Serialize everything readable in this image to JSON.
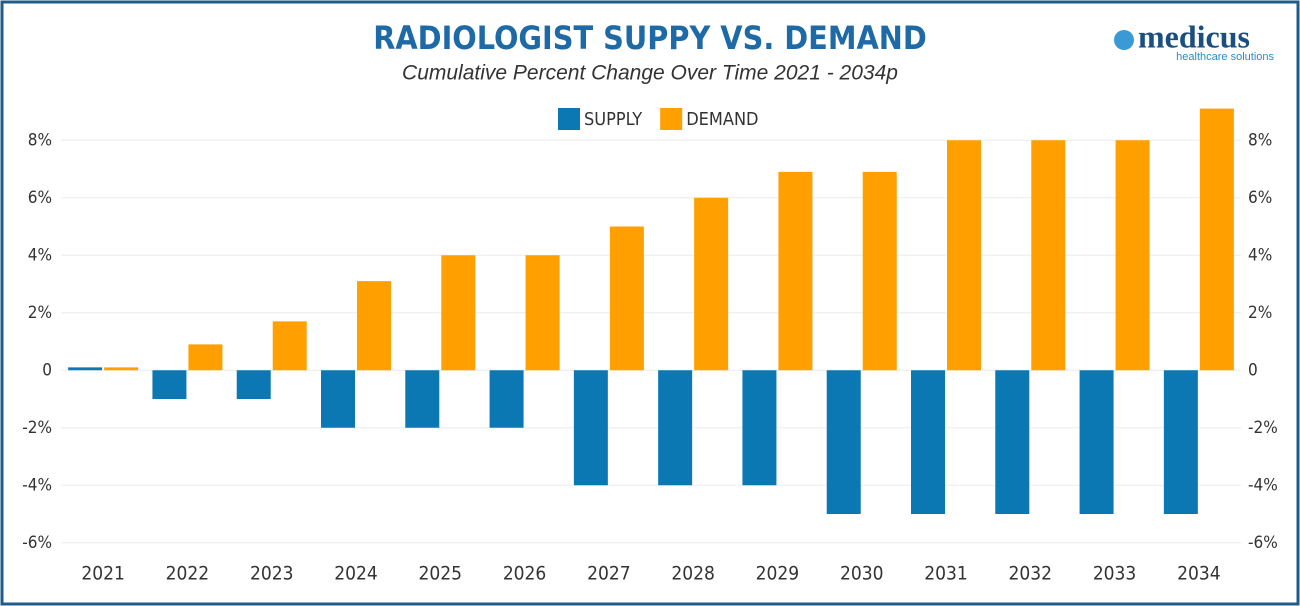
{
  "chart_data": {
    "type": "bar",
    "title": "RADIOLOGIST SUPPY VS. DEMAND",
    "subtitle": "Cumulative Percent Change Over Time 2021 - 2034p",
    "categories": [
      "2021",
      "2022",
      "2023",
      "2024",
      "2025",
      "2026",
      "2027",
      "2028",
      "2029",
      "2030",
      "2031",
      "2032",
      "2033",
      "2034"
    ],
    "series": [
      {
        "name": "SUPPLY",
        "color": "#0b78b3",
        "values": [
          0.1,
          -1,
          -1,
          -2,
          -2,
          -2,
          -4,
          -4,
          -4,
          -5,
          -5,
          -5,
          -5,
          -5
        ]
      },
      {
        "name": "DEMAND",
        "color": "#ff9f00",
        "values": [
          0.1,
          0.9,
          1.7,
          3.1,
          4,
          4,
          5,
          6,
          6.9,
          6.9,
          8,
          8,
          8,
          9.1
        ]
      }
    ],
    "ylim": [
      -6.6,
      9.4
    ],
    "yticks": [
      {
        "value": -6,
        "label": "-6%"
      },
      {
        "value": -4,
        "label": "-4%"
      },
      {
        "value": -2,
        "label": "-2%"
      },
      0,
      {
        "value": 2,
        "label": "2%"
      },
      {
        "value": 4,
        "label": "4%"
      },
      {
        "value": 6,
        "label": "6%"
      },
      {
        "value": 8,
        "label": "8%"
      }
    ],
    "grid": true,
    "legend": "top"
  },
  "logo": {
    "name": "medicus",
    "tagline": "healthcare solutions"
  }
}
